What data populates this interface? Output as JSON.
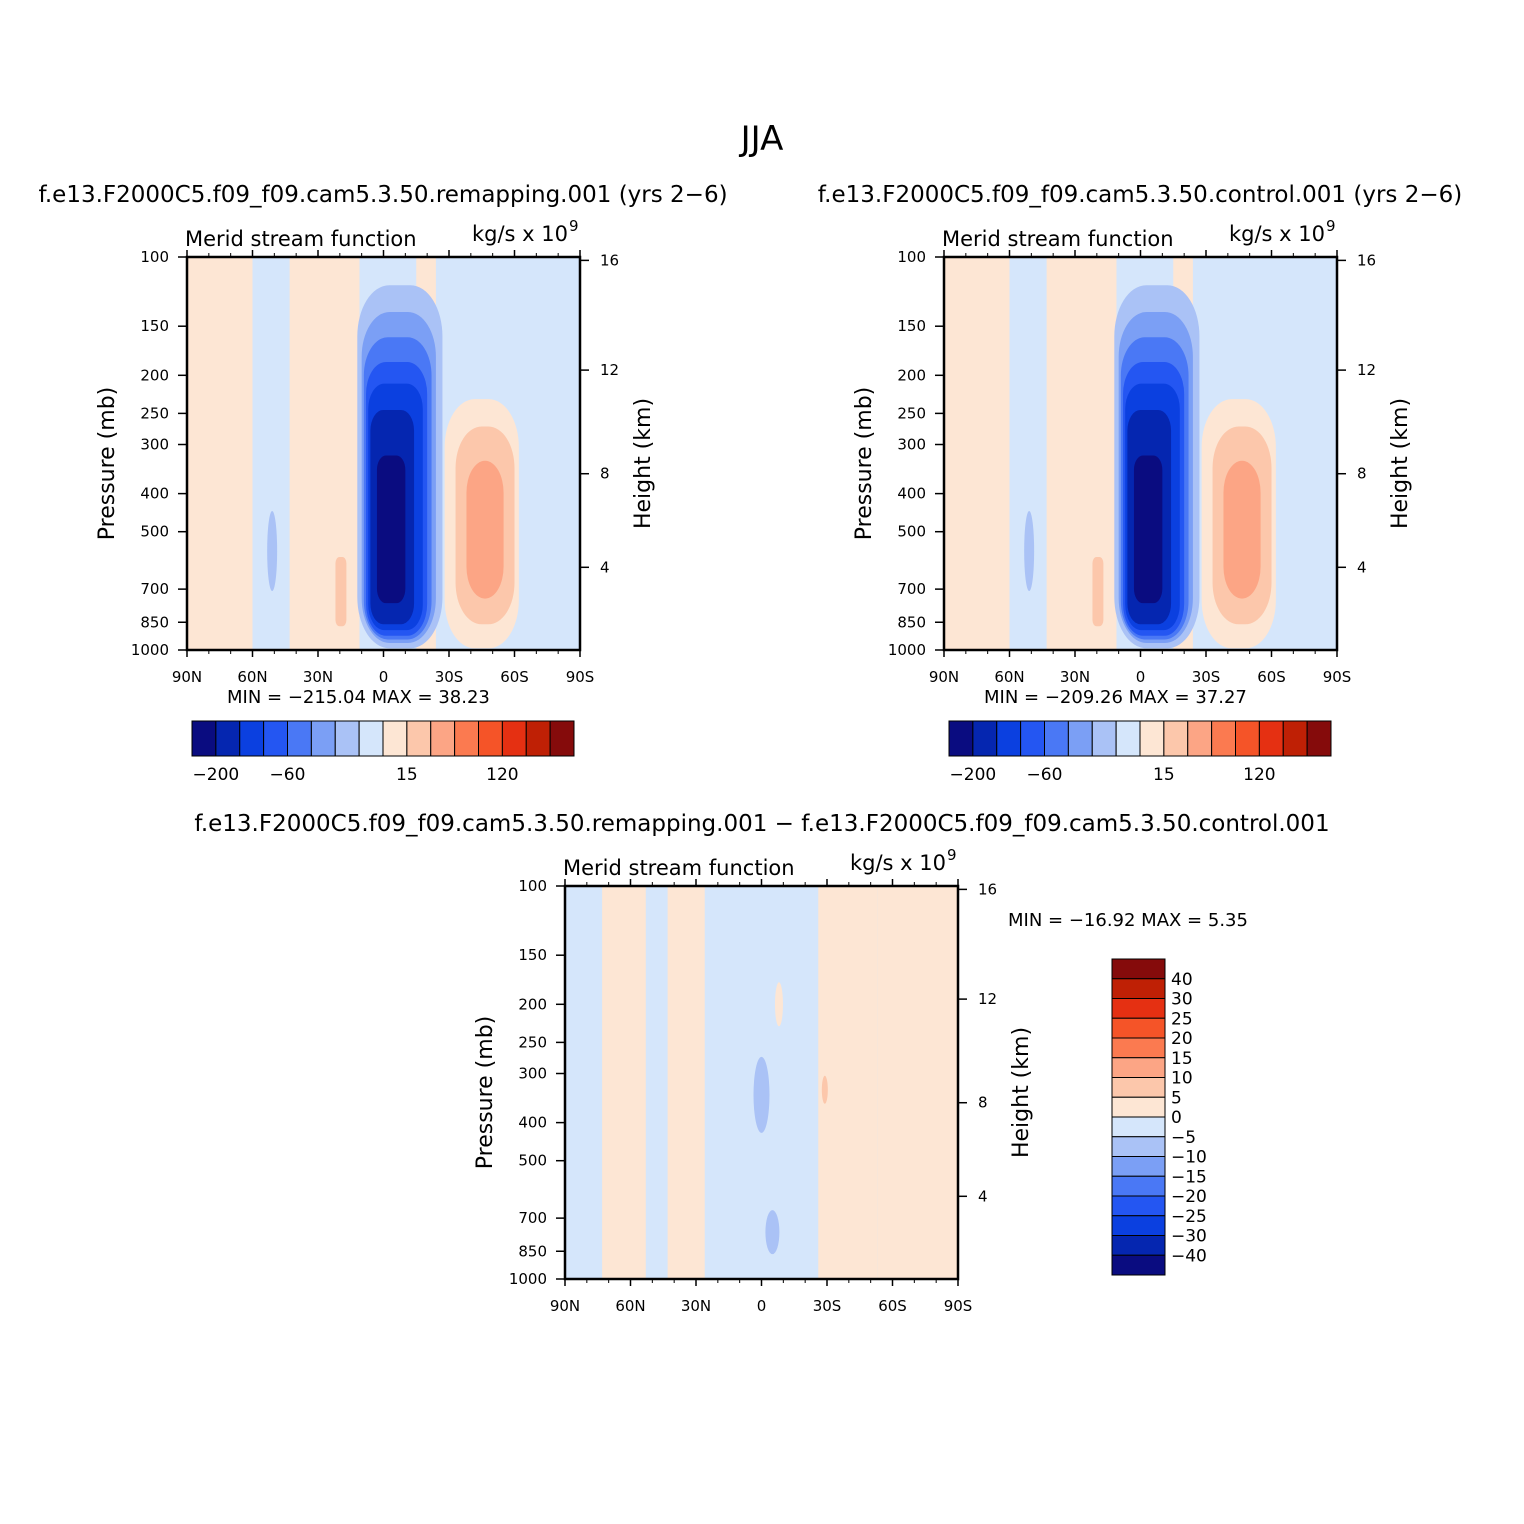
{
  "figure": {
    "title": "JJA"
  },
  "chart_data": [
    {
      "type": "heatmap",
      "case": "f.e13.F2000C5.f09_f09.cam5.3.50.remapping.001  (yrs 2−6)",
      "left_label": "Merid  stream  function",
      "right_label": "kg/s  x  10",
      "right_label_sup": "9",
      "xlabel": "",
      "ylabel": "Pressure  (mb)",
      "ylabel_right": "Height  (km)",
      "x_ticks": [
        "90N",
        "60N",
        "30N",
        "0",
        "30S",
        "60S",
        "90S"
      ],
      "y_ticks": [
        "100",
        "150",
        "200",
        "250",
        "300",
        "400",
        "500",
        "700",
        "850",
        "1000"
      ],
      "y_right_ticks": [
        "16",
        "12",
        "8",
        "4"
      ],
      "y_scale": "log",
      "ylim": [
        1000,
        100
      ],
      "stats": "MIN  =  −215.04    MAX  =    38.23",
      "min": -215.04,
      "max": 38.23,
      "colorbar_labels": [
        "−200",
        "−60",
        "15",
        "120"
      ],
      "colorbar_orientation": "horizontal",
      "color_stops": [
        "#0a0c80",
        "#0526b0",
        "#0b40e0",
        "#2456f2",
        "#4a78f5",
        "#7b9ff5",
        "#aac2f6",
        "#d5e6fb",
        "#fde6d4",
        "#fcc7ab",
        "#fca585",
        "#fb7a50",
        "#f55428",
        "#e53012",
        "#bf2005",
        "#850b0b"
      ],
      "features": [
        {
          "kind": "cell",
          "lat_center": 3,
          "p_center": 520,
          "value": -215.04
        },
        {
          "kind": "cell",
          "lat_center": -44,
          "p_center": 480,
          "value": 38.23
        }
      ]
    },
    {
      "type": "heatmap",
      "case": "f.e13.F2000C5.f09_f09.cam5.3.50.control.001  (yrs 2−6)",
      "left_label": "Merid  stream  function",
      "right_label": "kg/s  x  10",
      "right_label_sup": "9",
      "xlabel": "",
      "ylabel": "Pressure  (mb)",
      "ylabel_right": "Height  (km)",
      "x_ticks": [
        "90N",
        "60N",
        "30N",
        "0",
        "30S",
        "60S",
        "90S"
      ],
      "y_ticks": [
        "100",
        "150",
        "200",
        "250",
        "300",
        "400",
        "500",
        "700",
        "850",
        "1000"
      ],
      "y_right_ticks": [
        "16",
        "12",
        "8",
        "4"
      ],
      "y_scale": "log",
      "ylim": [
        1000,
        100
      ],
      "stats": "MIN  =  −209.26    MAX  =    37.27",
      "min": -209.26,
      "max": 37.27,
      "colorbar_labels": [
        "−200",
        "−60",
        "15",
        "120"
      ],
      "colorbar_orientation": "horizontal",
      "color_stops": [
        "#0a0c80",
        "#0526b0",
        "#0b40e0",
        "#2456f2",
        "#4a78f5",
        "#7b9ff5",
        "#aac2f6",
        "#d5e6fb",
        "#fde6d4",
        "#fcc7ab",
        "#fca585",
        "#fb7a50",
        "#f55428",
        "#e53012",
        "#bf2005",
        "#850b0b"
      ],
      "features": [
        {
          "kind": "cell",
          "lat_center": 3,
          "p_center": 500,
          "value": -209.26
        },
        {
          "kind": "cell",
          "lat_center": -45,
          "p_center": 470,
          "value": 37.27
        }
      ]
    },
    {
      "type": "heatmap",
      "case": "f.e13.F2000C5.f09_f09.cam5.3.50.remapping.001  −  f.e13.F2000C5.f09_f09.cam5.3.50.control.001",
      "left_label": "Merid  stream  function",
      "right_label": "kg/s  x  10",
      "right_label_sup": "9",
      "xlabel": "",
      "ylabel": "Pressure  (mb)",
      "ylabel_right": "Height  (km)",
      "x_ticks": [
        "90N",
        "60N",
        "30N",
        "0",
        "30S",
        "60S",
        "90S"
      ],
      "y_ticks": [
        "100",
        "150",
        "200",
        "250",
        "300",
        "400",
        "500",
        "700",
        "850",
        "1000"
      ],
      "y_right_ticks": [
        "16",
        "12",
        "8",
        "4"
      ],
      "y_scale": "log",
      "ylim": [
        1000,
        100
      ],
      "stats": "MIN  =  −16.92   MAX  =     5.35",
      "min": -16.92,
      "max": 5.35,
      "colorbar_labels": [
        "40",
        "30",
        "25",
        "20",
        "15",
        "10",
        "5",
        "0",
        "−5",
        "−10",
        "−15",
        "−20",
        "−25",
        "−30",
        "−40"
      ],
      "colorbar_orientation": "vertical",
      "color_stops": [
        "#850b0b",
        "#bf2005",
        "#e53012",
        "#f55428",
        "#fb7a50",
        "#fca585",
        "#fcc7ab",
        "#fde6d4",
        "#d5e6fb",
        "#aac2f6",
        "#7b9ff5",
        "#4a78f5",
        "#2456f2",
        "#0b40e0",
        "#0526b0",
        "#0a0c80"
      ]
    }
  ]
}
